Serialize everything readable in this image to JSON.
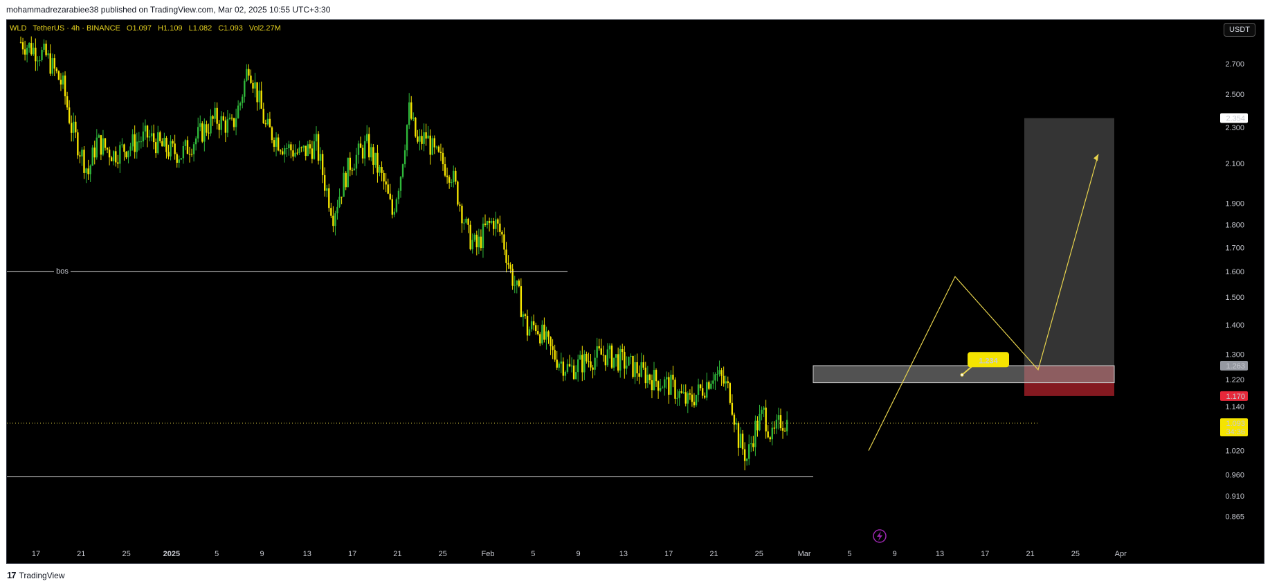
{
  "header": {
    "published_text": "mohammadrezarabiee38 published on TradingView.com, Mar 02, 2025 10:55 UTC+3:30"
  },
  "legend": {
    "symbol": "WLD",
    "pair": "TetherUS · 4h · BINANCE",
    "open": "O1.097",
    "high": "H1.109",
    "low": "L1.082",
    "close": "C1.093",
    "volume": "Vol2.27M"
  },
  "currency_button": "USDT",
  "footer": {
    "logo_mark": "17",
    "logo_text": "TradingView"
  },
  "annotations": {
    "bos_label": "bos",
    "target_callout": "1.234"
  },
  "colors": {
    "background": "#000000",
    "up_candle": "#2fb83a",
    "down_candle": "#f5e400",
    "trendline": "#e8d44d",
    "stop_zone": "#8b1a22",
    "target_zone": "#3a3a3a",
    "entry_zone": "#6b6b6b"
  },
  "chart_data": {
    "type": "candlestick",
    "symbol": "WLD / TetherUS",
    "interval": "4h",
    "exchange": "BINANCE",
    "price_scale": "log",
    "y_ticks": [
      "2.700",
      "2.500",
      "2.300",
      "2.100",
      "1.900",
      "1.800",
      "1.700",
      "1.600",
      "1.500",
      "1.400",
      "1.300",
      "1.220",
      "1.140",
      "1.020",
      "0.960",
      "0.910",
      "0.865"
    ],
    "price_labels": [
      {
        "value": "2.354",
        "style": "white"
      },
      {
        "value": "1.263",
        "style": "gray"
      },
      {
        "value": "1.170",
        "style": "red"
      },
      {
        "value": "1.093",
        "sub": "34:36",
        "style": "yellow"
      }
    ],
    "x_ticks": [
      {
        "label": "17",
        "bold": false
      },
      {
        "label": "21",
        "bold": false
      },
      {
        "label": "25",
        "bold": false
      },
      {
        "label": "2025",
        "bold": true
      },
      {
        "label": "5",
        "bold": false
      },
      {
        "label": "9",
        "bold": false
      },
      {
        "label": "13",
        "bold": false
      },
      {
        "label": "17",
        "bold": false
      },
      {
        "label": "21",
        "bold": false
      },
      {
        "label": "25",
        "bold": false
      },
      {
        "label": "Feb",
        "bold": false
      },
      {
        "label": "5",
        "bold": false
      },
      {
        "label": "9",
        "bold": false
      },
      {
        "label": "13",
        "bold": false
      },
      {
        "label": "17",
        "bold": false
      },
      {
        "label": "21",
        "bold": false
      },
      {
        "label": "25",
        "bold": false
      },
      {
        "label": "Mar",
        "bold": false
      },
      {
        "label": "5",
        "bold": false
      },
      {
        "label": "9",
        "bold": false
      },
      {
        "label": "13",
        "bold": false
      },
      {
        "label": "17",
        "bold": false
      },
      {
        "label": "21",
        "bold": false
      },
      {
        "label": "25",
        "bold": false
      },
      {
        "label": "Apr",
        "bold": false
      }
    ],
    "close_path": [
      [
        0,
        2.85
      ],
      [
        3,
        2.75
      ],
      [
        5,
        2.55
      ],
      [
        6,
        2.3
      ],
      [
        8,
        2.05
      ],
      [
        9,
        2.22
      ],
      [
        11,
        2.15
      ],
      [
        13,
        2.2
      ],
      [
        15,
        2.25
      ],
      [
        17,
        2.18
      ],
      [
        19,
        2.15
      ],
      [
        21,
        2.25
      ],
      [
        23,
        2.35
      ],
      [
        25,
        2.3
      ],
      [
        26,
        2.45
      ],
      [
        27,
        2.7
      ],
      [
        28,
        2.5
      ],
      [
        29,
        2.3
      ],
      [
        31,
        2.2
      ],
      [
        33,
        2.15
      ],
      [
        35,
        2.2
      ],
      [
        36,
        2.0
      ],
      [
        37,
        1.85
      ],
      [
        39,
        2.1
      ],
      [
        41,
        2.2
      ],
      [
        42,
        2.1
      ],
      [
        43,
        2.0
      ],
      [
        44,
        1.85
      ],
      [
        45,
        2.05
      ],
      [
        46,
        2.4
      ],
      [
        47,
        2.2
      ],
      [
        48,
        2.25
      ],
      [
        49,
        2.15
      ],
      [
        51,
        2.05
      ],
      [
        52,
        1.9
      ],
      [
        53,
        1.75
      ],
      [
        54,
        1.7
      ],
      [
        55,
        1.78
      ],
      [
        56,
        1.82
      ],
      [
        57,
        1.75
      ],
      [
        58,
        1.6
      ],
      [
        59,
        1.5
      ],
      [
        60,
        1.38
      ],
      [
        61,
        1.4
      ],
      [
        63,
        1.3
      ],
      [
        65,
        1.25
      ],
      [
        67,
        1.28
      ],
      [
        69,
        1.3
      ],
      [
        71,
        1.28
      ],
      [
        73,
        1.25
      ],
      [
        75,
        1.22
      ],
      [
        77,
        1.2
      ],
      [
        79,
        1.15
      ],
      [
        81,
        1.2
      ],
      [
        82,
        1.24
      ],
      [
        83,
        1.22
      ],
      [
        84,
        1.18
      ],
      [
        85,
        1.05
      ],
      [
        86,
        1.0
      ],
      [
        87,
        1.08
      ],
      [
        88,
        1.12
      ],
      [
        89,
        1.05
      ],
      [
        90,
        1.1
      ],
      [
        91,
        1.093
      ]
    ],
    "levels": {
      "bos": 1.6,
      "equal_lows": 0.955,
      "current": 1.093,
      "target": 2.354,
      "entry_top": 1.263,
      "entry_bottom": 1.21,
      "stop": 1.17,
      "callout": 1.234
    }
  }
}
